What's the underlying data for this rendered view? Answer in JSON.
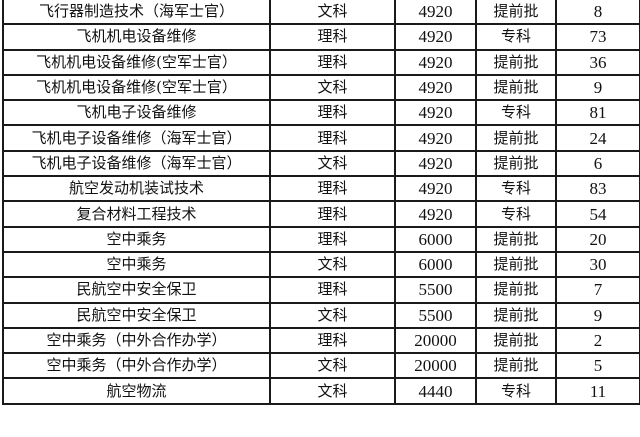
{
  "table": {
    "rows": [
      [
        "飞行器制造技术（海军士官）",
        "文科",
        "4920",
        "提前批",
        "8"
      ],
      [
        "飞机机电设备维修",
        "理科",
        "4920",
        "专科",
        "73"
      ],
      [
        "飞机机电设备维修(空军士官）",
        "理科",
        "4920",
        "提前批",
        "36"
      ],
      [
        "飞机机电设备维修(空军士官）",
        "文科",
        "4920",
        "提前批",
        "9"
      ],
      [
        "飞机电子设备维修",
        "理科",
        "4920",
        "专科",
        "81"
      ],
      [
        "飞机电子设备维修（海军士官）",
        "理科",
        "4920",
        "提前批",
        "24"
      ],
      [
        "飞机电子设备维修（海军士官）",
        "文科",
        "4920",
        "提前批",
        "6"
      ],
      [
        "航空发动机装试技术",
        "理科",
        "4920",
        "专科",
        "83"
      ],
      [
        "复合材料工程技术",
        "理科",
        "4920",
        "专科",
        "54"
      ],
      [
        "空中乘务",
        "理科",
        "6000",
        "提前批",
        "20"
      ],
      [
        "空中乘务",
        "文科",
        "6000",
        "提前批",
        "30"
      ],
      [
        "民航空中安全保卫",
        "理科",
        "5500",
        "提前批",
        "7"
      ],
      [
        "民航空中安全保卫",
        "文科",
        "5500",
        "提前批",
        "9"
      ],
      [
        "空中乘务（中外合作办学）",
        "理科",
        "20000",
        "提前批",
        "2"
      ],
      [
        "空中乘务（中外合作办学）",
        "文科",
        "20000",
        "提前批",
        "5"
      ],
      [
        "航空物流",
        "文科",
        "4440",
        "专科",
        "11"
      ]
    ]
  }
}
